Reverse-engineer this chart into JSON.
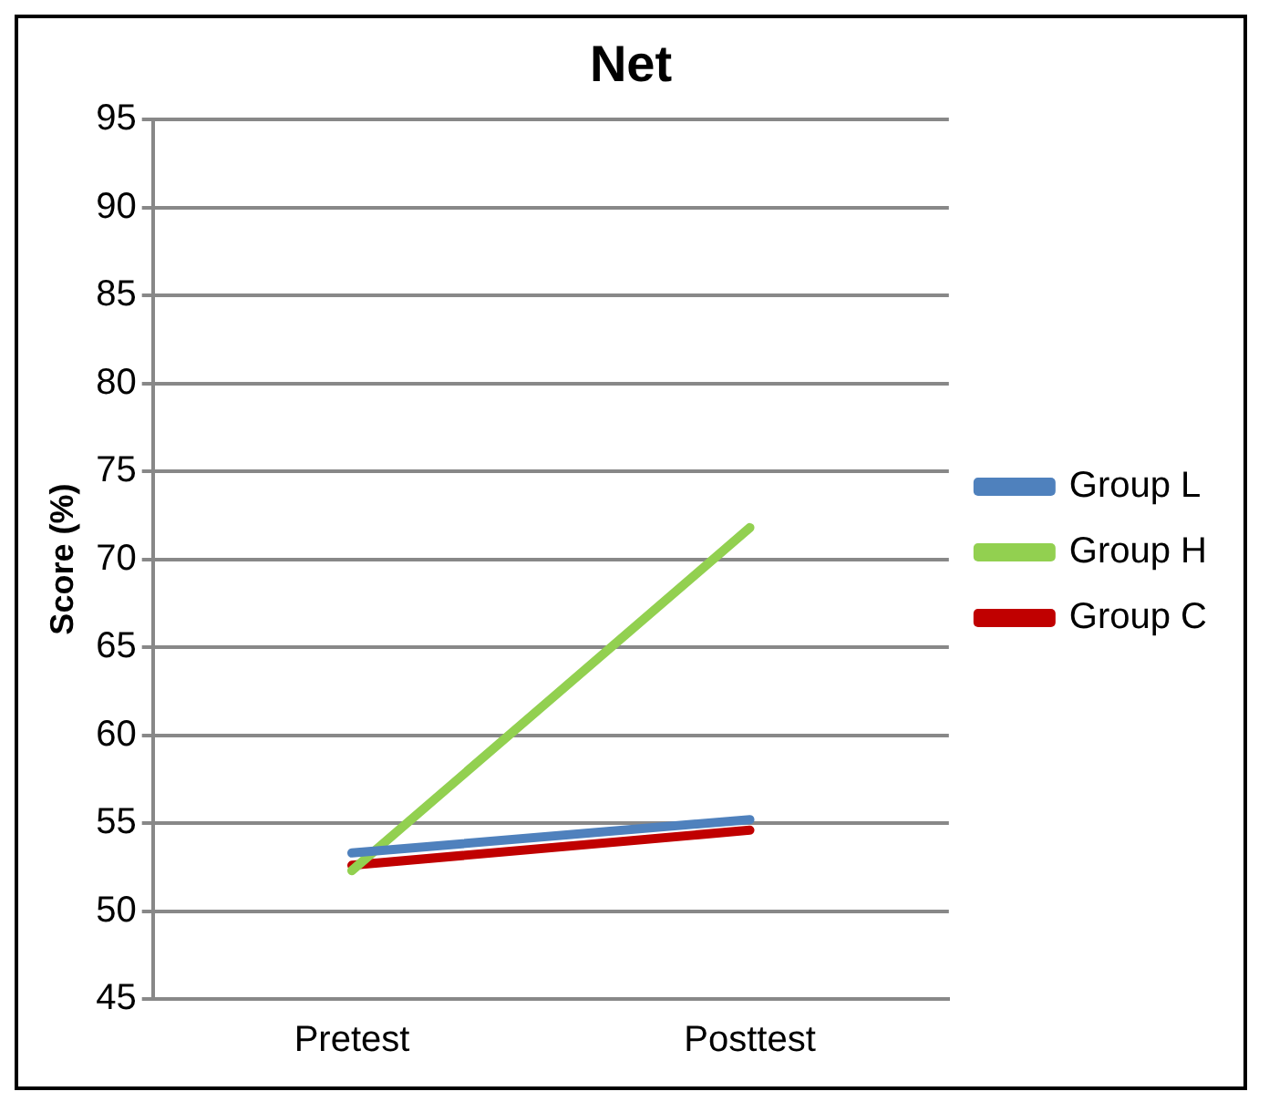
{
  "chart_data": {
    "type": "line",
    "title": "Net",
    "ylabel": "Score (%)",
    "categories": [
      "Pretest",
      "Posttest"
    ],
    "series": [
      {
        "name": "Group L",
        "color": "#4f81bd",
        "values": [
          53.3,
          55.2
        ]
      },
      {
        "name": "Group H",
        "color": "#92d050",
        "values": [
          52.3,
          71.8
        ]
      },
      {
        "name": "Group C",
        "color": "#c00000",
        "values": [
          52.6,
          54.6
        ]
      }
    ],
    "ylim": [
      45,
      95
    ],
    "yticks": [
      45,
      50,
      55,
      60,
      65,
      70,
      75,
      80,
      85,
      90,
      95
    ],
    "grid": "y",
    "legend": "right",
    "marker": "none",
    "line_style": "solid"
  }
}
